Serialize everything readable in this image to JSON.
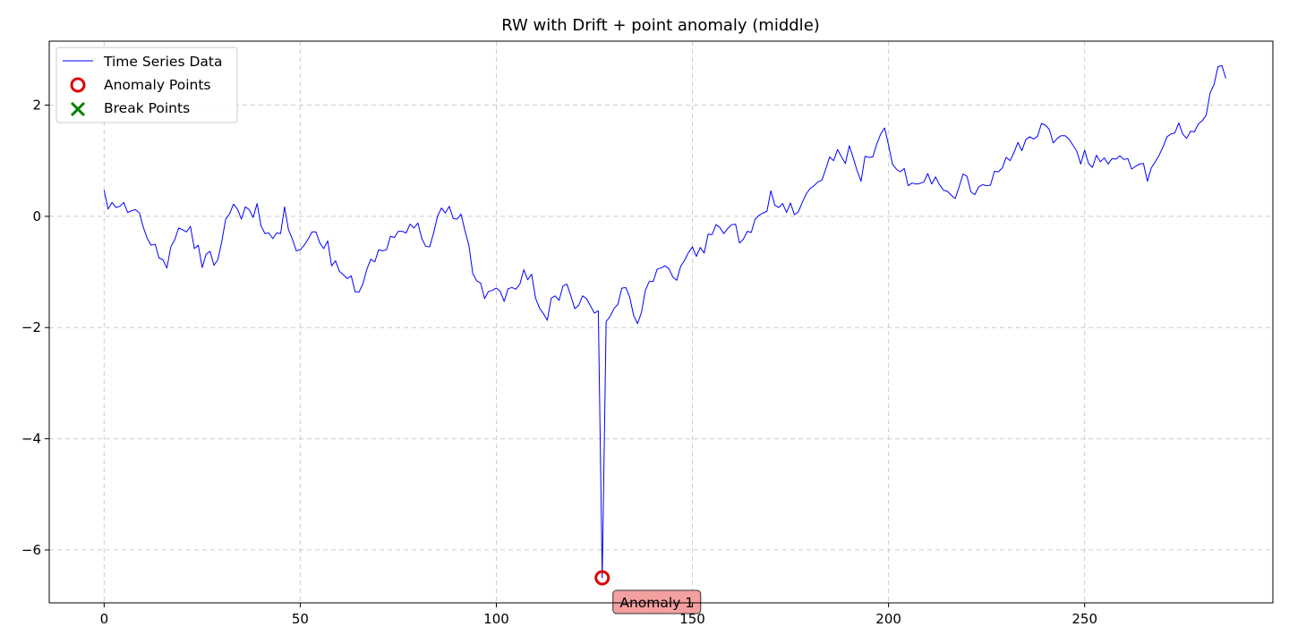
{
  "chart_data": {
    "type": "line",
    "title": "RW with Drift + point anomaly (middle)",
    "xlabel": "",
    "ylabel": "",
    "xlim": [
      -14,
      298
    ],
    "ylim": [
      -6.95,
      3.15
    ],
    "x_ticks": [
      0,
      50,
      100,
      150,
      200,
      250
    ],
    "y_ticks": [
      -6,
      -4,
      -2,
      0,
      2
    ],
    "grid": true,
    "legend_position": "top-left",
    "colors": {
      "series": "#0000ff",
      "anomaly": "#e00000",
      "break": "#008000",
      "annotation_fill": "#f4a0a0",
      "grid": "#cccccc"
    },
    "legend": [
      {
        "label": "Time Series Data",
        "marker": "line"
      },
      {
        "label": "Anomaly Points",
        "marker": "circle"
      },
      {
        "label": "Break Points",
        "marker": "x"
      }
    ],
    "series": [
      {
        "name": "Time Series Data",
        "values": [
          0.47,
          0.13,
          0.25,
          0.16,
          0.18,
          0.25,
          0.07,
          0.1,
          0.12,
          0.06,
          -0.2,
          -0.4,
          -0.52,
          -0.5,
          -0.75,
          -0.78,
          -0.93,
          -0.55,
          -0.42,
          -0.21,
          -0.24,
          -0.28,
          -0.18,
          -0.58,
          -0.52,
          -0.92,
          -0.68,
          -0.63,
          -0.88,
          -0.78,
          -0.45,
          -0.05,
          0.05,
          0.22,
          0.13,
          -0.05,
          0.17,
          0.12,
          -0.02,
          0.23,
          -0.17,
          -0.31,
          -0.3,
          -0.4,
          -0.3,
          -0.31,
          0.17,
          -0.24,
          -0.41,
          -0.62,
          -0.6,
          -0.52,
          -0.41,
          -0.28,
          -0.28,
          -0.48,
          -0.58,
          -0.44,
          -0.89,
          -0.8,
          -0.99,
          -1.05,
          -1.12,
          -1.07,
          -1.36,
          -1.36,
          -1.21,
          -0.95,
          -0.77,
          -0.82,
          -0.6,
          -0.62,
          -0.6,
          -0.36,
          -0.38,
          -0.27,
          -0.27,
          -0.3,
          -0.14,
          -0.21,
          -0.12,
          -0.4,
          -0.54,
          -0.55,
          -0.3,
          0.0,
          0.15,
          0.06,
          0.18,
          -0.04,
          -0.05,
          0.04,
          -0.26,
          -0.52,
          -1.03,
          -1.16,
          -1.2,
          -1.48,
          -1.35,
          -1.33,
          -1.29,
          -1.35,
          -1.53,
          -1.3,
          -1.28,
          -1.31,
          -1.22,
          -0.96,
          -1.14,
          -1.04,
          -1.47,
          -1.65,
          -1.75,
          -1.87,
          -1.47,
          -1.43,
          -1.51,
          -1.25,
          -1.22,
          -1.43,
          -1.66,
          -1.6,
          -1.43,
          -1.48,
          -1.61,
          -1.74,
          -1.7,
          -6.5,
          -1.89,
          -1.8,
          -1.66,
          -1.58,
          -1.29,
          -1.28,
          -1.45,
          -1.78,
          -1.93,
          -1.73,
          -1.33,
          -1.17,
          -1.17,
          -0.95,
          -0.93,
          -0.89,
          -0.94,
          -1.09,
          -1.15,
          -0.9,
          -0.79,
          -0.65,
          -0.55,
          -0.72,
          -0.56,
          -0.66,
          -0.32,
          -0.33,
          -0.15,
          -0.2,
          -0.31,
          -0.22,
          -0.15,
          -0.14,
          -0.48,
          -0.41,
          -0.27,
          -0.29,
          -0.05,
          0.02,
          0.06,
          0.09,
          0.46,
          0.2,
          0.16,
          0.23,
          0.07,
          0.24,
          0.03,
          0.08,
          0.25,
          0.4,
          0.5,
          0.55,
          0.62,
          0.65,
          0.85,
          1.07,
          1.0,
          1.2,
          1.07,
          0.95,
          1.27,
          1.05,
          0.82,
          0.63,
          1.08,
          1.06,
          1.07,
          1.3,
          1.48,
          1.59,
          1.28,
          0.94,
          0.85,
          0.8,
          0.86,
          0.55,
          0.6,
          0.58,
          0.59,
          0.62,
          0.77,
          0.58,
          0.71,
          0.57,
          0.47,
          0.45,
          0.38,
          0.32,
          0.53,
          0.76,
          0.72,
          0.44,
          0.39,
          0.53,
          0.57,
          0.55,
          0.56,
          0.81,
          0.8,
          0.87,
          1.06,
          1.0,
          1.15,
          1.33,
          1.18,
          1.38,
          1.43,
          1.39,
          1.44,
          1.67,
          1.64,
          1.56,
          1.32,
          1.4,
          1.45,
          1.45,
          1.39,
          1.28,
          1.17,
          0.94,
          1.19,
          0.95,
          0.88,
          1.1,
          0.98,
          1.05,
          0.94,
          1.04,
          1.03,
          1.09,
          1.02,
          1.04,
          0.85,
          0.9,
          0.94,
          0.95,
          0.63,
          0.87,
          0.98,
          1.1,
          1.25,
          1.43,
          1.48,
          1.5,
          1.68,
          1.48,
          1.4,
          1.53,
          1.52,
          1.66,
          1.72,
          1.82,
          2.22,
          2.37,
          2.69,
          2.71,
          2.48
        ]
      }
    ],
    "anomalies": [
      {
        "x": 127,
        "y": -6.5,
        "label": "Anomaly 1"
      }
    ],
    "break_points": []
  }
}
